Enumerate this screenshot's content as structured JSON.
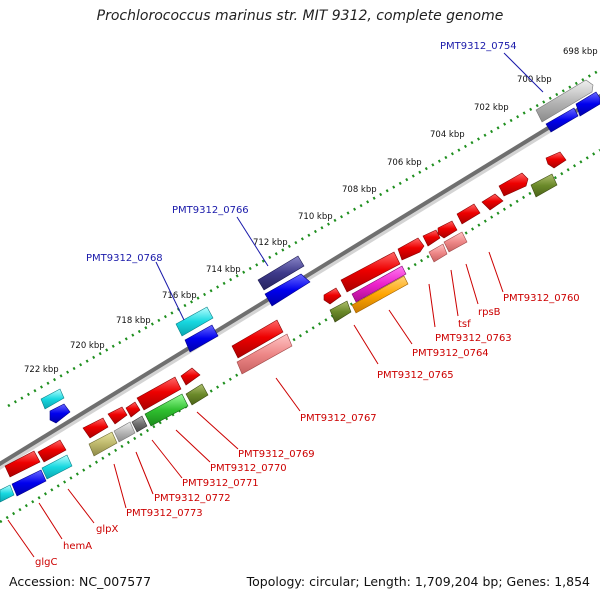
{
  "title": "Prochlorococcus marinus str. MIT 9312, complete genome",
  "accession": "Accession: NC_007577",
  "summary": "Topology: circular; Length: 1,709,204 bp; Genes: 1,854",
  "colors": {
    "backbone": "#7d7d7d",
    "outer_ticks": "#1f8f1f",
    "inner_ticks": "#1f8f1f",
    "label_red": "#cc0000",
    "label_blue": "#1a1aaa"
  },
  "kbp_labels": [
    "698 kbp",
    "700 kbp",
    "702 kbp",
    "704 kbp",
    "706 kbp",
    "708 kbp",
    "710 kbp",
    "712 kbp",
    "714 kbp",
    "716 kbp",
    "718 kbp",
    "720 kbp",
    "722 kbp"
  ],
  "gene_labels_red": [
    "glgC",
    "hemA",
    "glpX",
    "PMT9312_0773",
    "PMT9312_0772",
    "PMT9312_0771",
    "PMT9312_0770",
    "PMT9312_0769",
    "PMT9312_0767",
    "PMT9312_0765",
    "PMT9312_0764",
    "PMT9312_0763",
    "tsf",
    "rpsB",
    "PMT9312_0760"
  ],
  "gene_labels_blue": [
    "PMT9312_0754",
    "PMT9312_0766",
    "PMT9312_0768"
  ]
}
